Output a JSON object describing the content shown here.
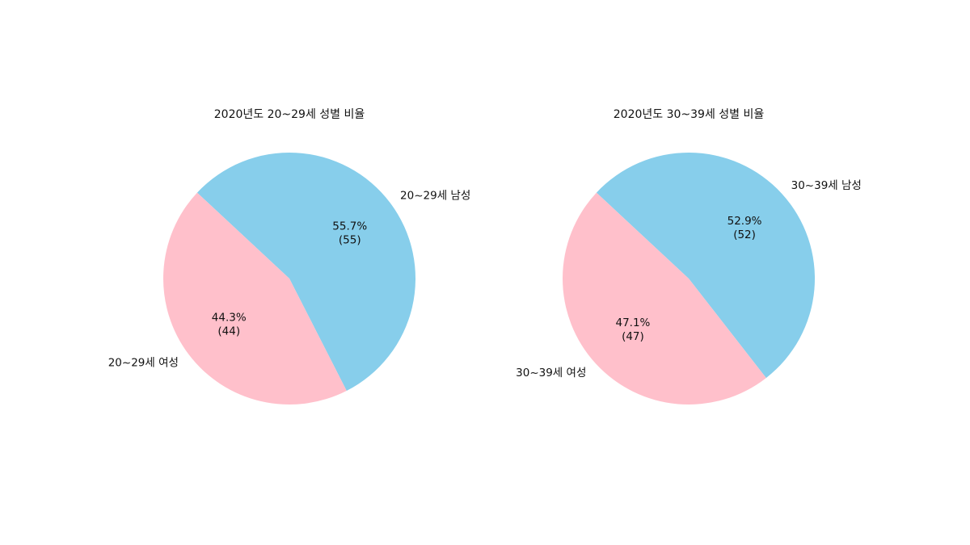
{
  "chart_data": [
    {
      "type": "pie",
      "title": "2020년도 20~29세 성별 비율",
      "slices": [
        {
          "label": "20~29세 남성",
          "value": 55,
          "percent_label": "55.7%",
          "count_label": "(55)",
          "color": "#87CEEB"
        },
        {
          "label": "20~29세 여성",
          "value": 44,
          "percent_label": "44.3%",
          "count_label": "(44)",
          "color": "#FFC0CB"
        }
      ]
    },
    {
      "type": "pie",
      "title": "2020년도 30~39세 성별 비율",
      "slices": [
        {
          "label": "30~39세 남성",
          "value": 52,
          "percent_label": "52.9%",
          "count_label": "(52)",
          "color": "#87CEEB"
        },
        {
          "label": "30~39세 여성",
          "value": 47,
          "percent_label": "47.1%",
          "count_label": "(47)",
          "color": "#FFC0CB"
        }
      ]
    }
  ]
}
